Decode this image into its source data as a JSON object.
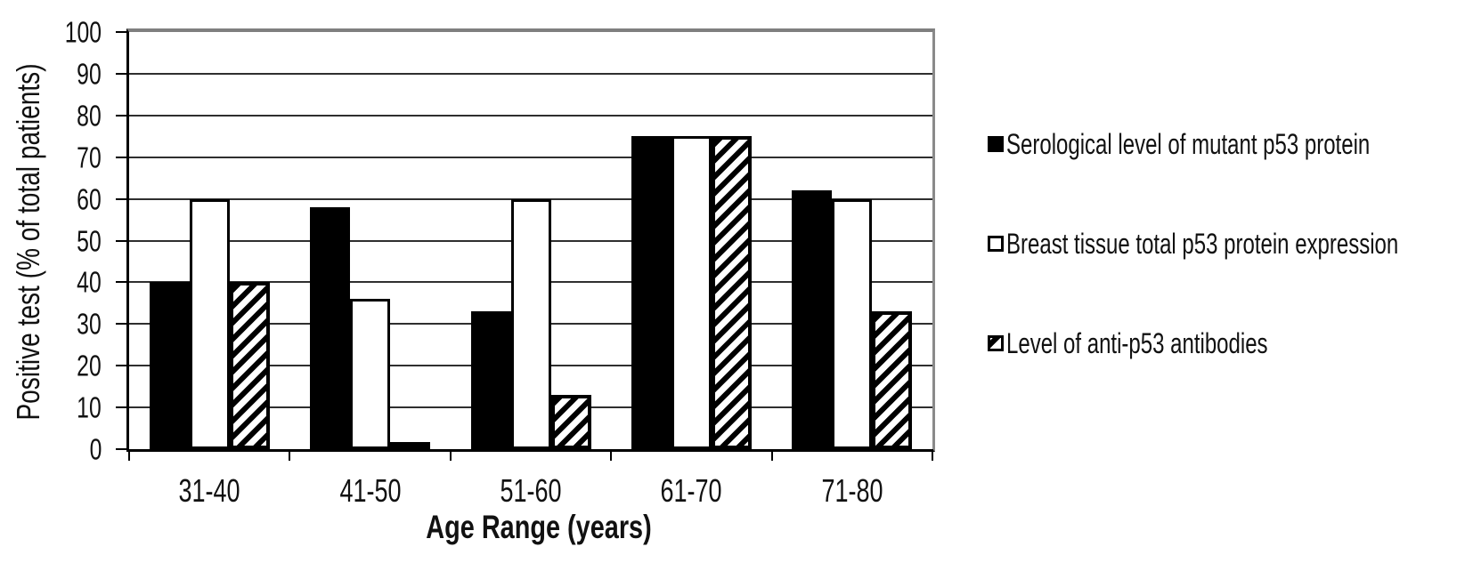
{
  "chart_data": {
    "type": "bar",
    "title": "",
    "categories": [
      "31-40",
      "41-50",
      "51-60",
      "61-70",
      "71-80"
    ],
    "series": [
      {
        "name": "Serological level of mutant p53 protein",
        "pattern": "solid-black",
        "values": [
          40,
          58,
          33,
          75,
          62
        ]
      },
      {
        "name": "Breast tissue total p53 protein expression",
        "pattern": "white-outlined",
        "values": [
          60,
          36,
          60,
          75,
          60
        ]
      },
      {
        "name": "Level of anti-p53 antibodies",
        "pattern": "diagonal-hatch",
        "values": [
          40,
          1,
          13,
          75,
          33
        ]
      }
    ],
    "xlabel": "Age Range (years)",
    "ylabel": "Positive test (% of total patients)",
    "ylim": [
      0,
      100
    ],
    "yticks": [
      0,
      10,
      20,
      30,
      40,
      50,
      60,
      70,
      80,
      90,
      100
    ],
    "grid": true,
    "legend_position": "right"
  },
  "colors": {
    "bar_black": "#000000",
    "bar_white": "#ffffff",
    "outline": "#000000",
    "gridline": "#2f2f2f",
    "plot_border_gray": "#7f7f7f",
    "axis": "#000000",
    "background": "#ffffff",
    "text": "#111111"
  }
}
